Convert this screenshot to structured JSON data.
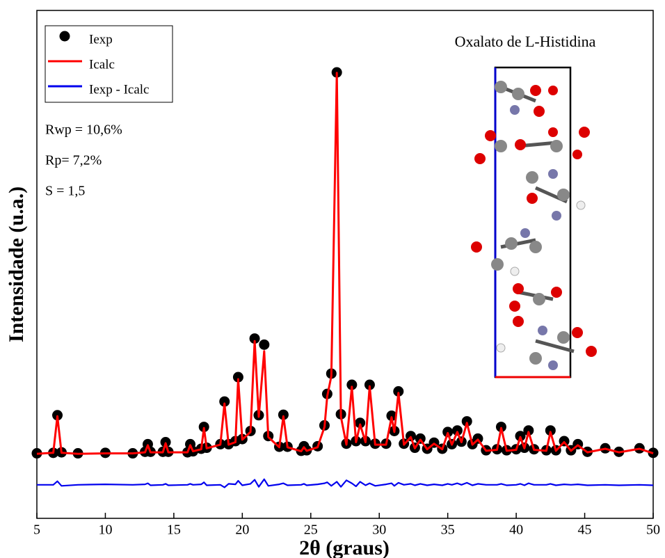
{
  "chart_data": {
    "type": "line",
    "title": "Oxalato de L-Histidina",
    "x_label": "2θ (graus)",
    "y_label": "Intensidade (u.a.)",
    "annotations": [
      "Rwp = 10,6%",
      "Rp= 7,2%",
      "S = 1,5"
    ],
    "xlim": [
      5,
      50
    ],
    "xticks": [
      5,
      10,
      15,
      20,
      25,
      30,
      35,
      40,
      45,
      50
    ],
    "ylim": [
      0,
      100
    ],
    "legend": "upper-left",
    "x": [
      5,
      6.2,
      6.5,
      6.8,
      8,
      10,
      12,
      12.9,
      13.1,
      13.3,
      14.2,
      14.4,
      14.6,
      16.0,
      16.2,
      16.4,
      17.0,
      17.2,
      17.4,
      18.4,
      18.7,
      19.0,
      19.5,
      19.7,
      20.0,
      20.6,
      20.9,
      21.2,
      21.6,
      21.9,
      22.7,
      23.0,
      23.3,
      24.3,
      24.5,
      24.7,
      25.5,
      26.0,
      26.2,
      26.5,
      26.9,
      27.2,
      27.6,
      28.0,
      28.3,
      28.6,
      29.0,
      29.3,
      29.7,
      30.5,
      30.9,
      31.1,
      31.4,
      31.8,
      32.3,
      32.6,
      33.0,
      33.5,
      34.0,
      34.6,
      35.0,
      35.3,
      35.7,
      36.0,
      36.4,
      36.8,
      37.2,
      37.8,
      38.6,
      38.9,
      39.3,
      40.0,
      40.3,
      40.6,
      40.9,
      41.3,
      42.2,
      42.5,
      42.9,
      43.5,
      44.0,
      44.5,
      45.2,
      46.5,
      47.5,
      49.0,
      50.0
    ],
    "series": [
      {
        "name": "Iexp",
        "type": "scatter",
        "color": "#000000",
        "values": [
          12.8,
          12.9,
          20.3,
          13,
          12.8,
          12.9,
          12.8,
          13.1,
          14.6,
          13.1,
          13.1,
          15,
          13.1,
          13,
          14.6,
          13.2,
          13.7,
          18,
          13.9,
          14.6,
          23,
          14.6,
          15.2,
          27.8,
          15.6,
          17.2,
          35.4,
          20.3,
          34.2,
          16.2,
          14.1,
          20.4,
          14.1,
          13.3,
          14.2,
          13.4,
          14.2,
          18.3,
          24.5,
          28.5,
          87.8,
          20.5,
          14.7,
          26.3,
          15.2,
          18.8,
          15.2,
          26.3,
          14.7,
          14.7,
          20.2,
          17.2,
          25,
          14.7,
          16.2,
          13.9,
          15.7,
          13.7,
          14.9,
          13.7,
          17,
          14.6,
          17.3,
          15.1,
          19.1,
          14.6,
          15.7,
          13.4,
          13.6,
          18,
          13.4,
          13.6,
          16.2,
          13.9,
          17.3,
          13.6,
          13.4,
          17.3,
          13.4,
          15.2,
          13.4,
          14.6,
          13.1,
          13.8,
          13.1,
          13.8,
          12.9
        ]
      },
      {
        "name": "Icalc",
        "type": "line",
        "color": "#ff0000",
        "values": [
          12.7,
          12.9,
          20.1,
          12.9,
          12.7,
          12.8,
          12.8,
          13,
          14.4,
          13,
          13,
          14.8,
          13,
          13,
          14.4,
          13.2,
          13.6,
          17.8,
          13.8,
          14.5,
          22.6,
          14.5,
          15,
          27.4,
          15.5,
          17,
          34.9,
          20,
          32.9,
          16,
          14,
          20.1,
          14,
          13.2,
          14,
          13.3,
          14,
          18,
          24,
          28,
          87.7,
          20,
          14.5,
          25.9,
          15,
          18.5,
          15,
          26,
          14.5,
          14.5,
          19.9,
          17,
          24.7,
          14.5,
          16,
          13.8,
          15.5,
          13.6,
          14.7,
          13.6,
          16.8,
          14.5,
          17,
          15,
          18.8,
          14.5,
          15.5,
          13.3,
          13.5,
          17.8,
          13.3,
          13.5,
          16,
          13.8,
          17,
          13.5,
          13.3,
          17,
          13.3,
          15,
          13.3,
          14.4,
          13,
          13.7,
          13,
          13.7,
          12.8
        ]
      },
      {
        "name": "Iexp - Icalc",
        "type": "line",
        "color": "#0000ee",
        "values": [
          6.6,
          6.6,
          7.3,
          6.4,
          6.6,
          6.7,
          6.6,
          6.7,
          6.9,
          6.5,
          6.6,
          6.8,
          6.5,
          6.6,
          6.8,
          6.6,
          6.7,
          7.1,
          6.5,
          6.6,
          6.1,
          6.8,
          6.7,
          7.4,
          6.5,
          6.8,
          7.6,
          6.2,
          7.7,
          6.4,
          6.7,
          6.9,
          6.5,
          6.6,
          6.8,
          6.5,
          6.7,
          6.9,
          7.1,
          6.4,
          7.2,
          6.2,
          7.5,
          6.9,
          6.3,
          7.2,
          6.5,
          6.9,
          6.4,
          6.7,
          6.9,
          6.4,
          7,
          6.6,
          6.8,
          6.5,
          6.8,
          6.5,
          6.7,
          6.5,
          6.8,
          6.6,
          6.9,
          6.6,
          7,
          6.5,
          6.8,
          6.6,
          6.6,
          6.8,
          6.5,
          6.6,
          6.8,
          6.5,
          6.9,
          6.6,
          6.6,
          6.8,
          6.5,
          6.7,
          6.6,
          6.7,
          6.5,
          6.6,
          6.5,
          6.6,
          6.5
        ]
      }
    ]
  }
}
